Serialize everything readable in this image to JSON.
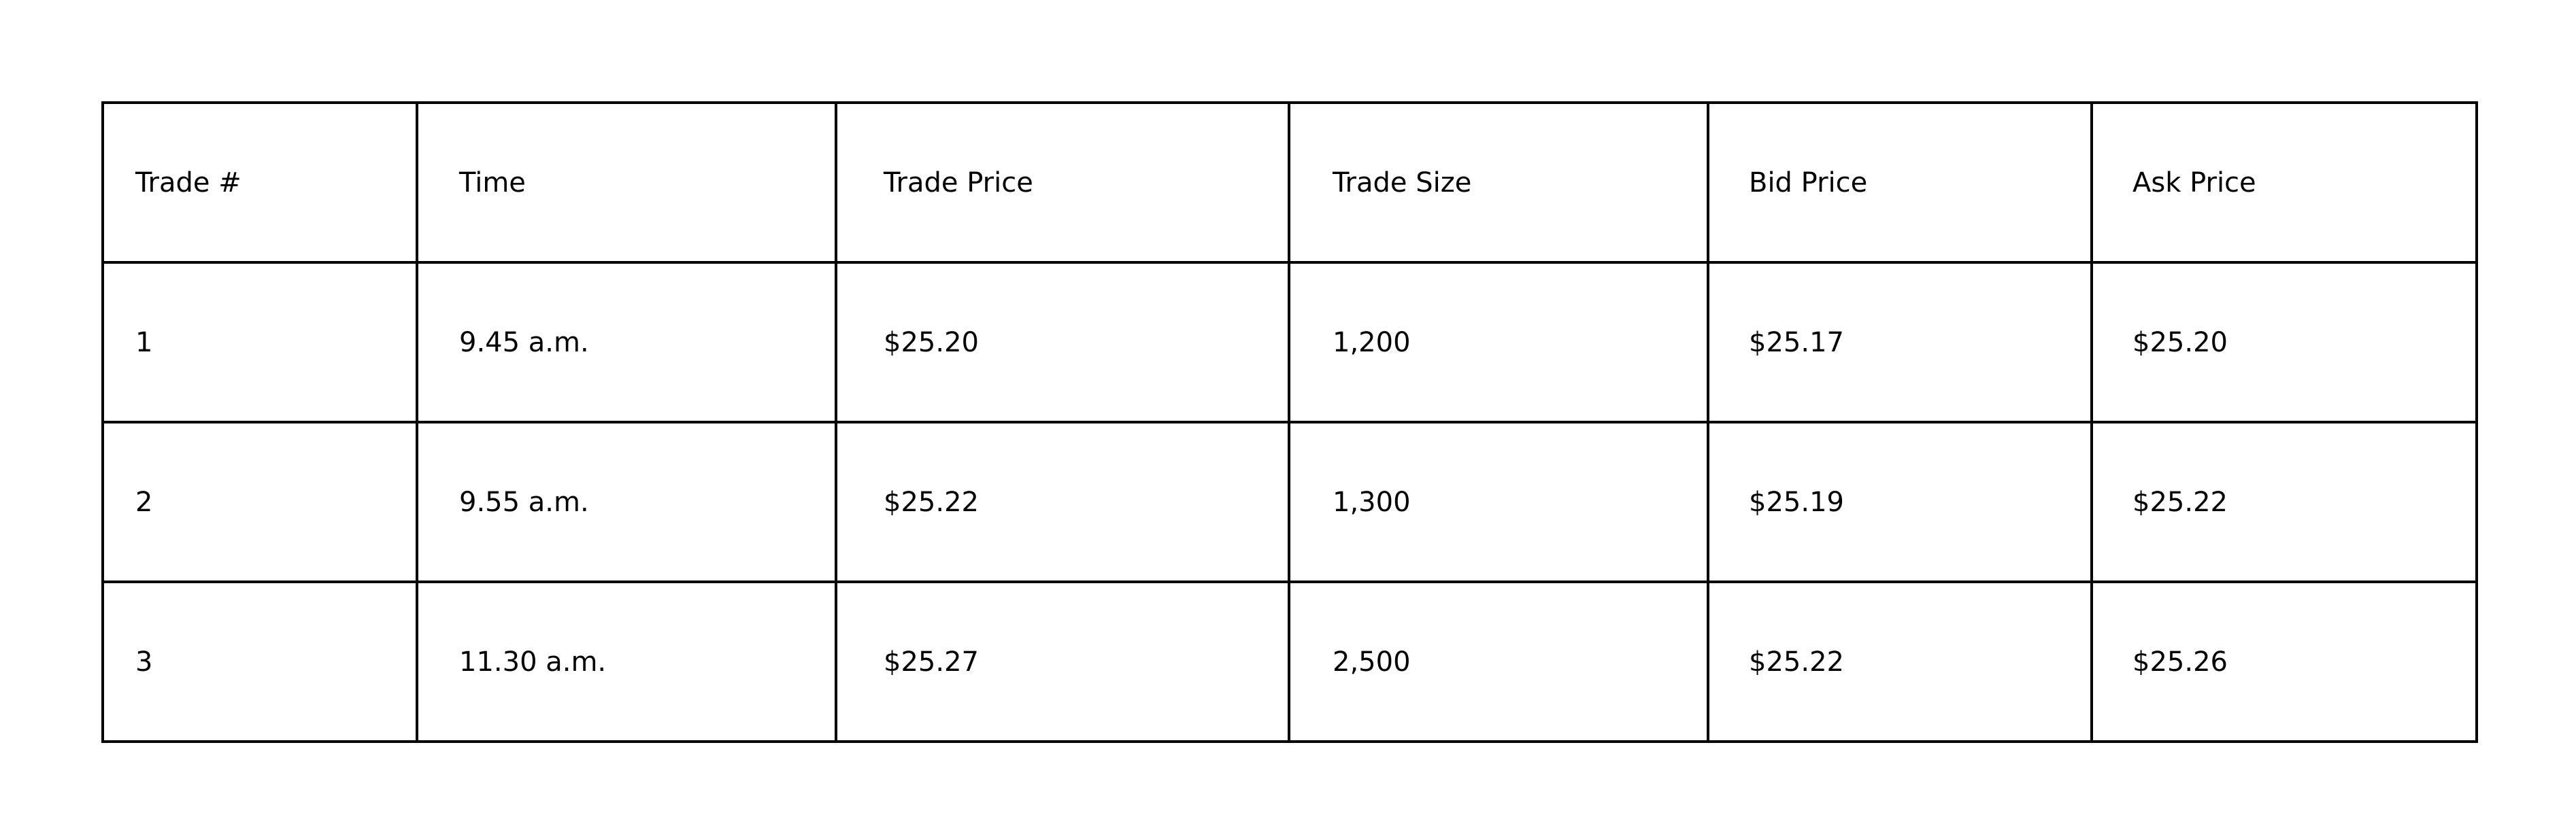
{
  "table": {
    "headers": [
      "Trade #",
      "Time",
      "Trade Price",
      "Trade Size",
      "Bid Price",
      "Ask Price"
    ],
    "rows": [
      [
        "1",
        "9.45 a.m.",
        "$25.20",
        "1,200",
        "$25.17",
        "$25.20"
      ],
      [
        "2",
        "9.55 a.m.",
        "$25.22",
        "1,300",
        "$25.19",
        "$25.22"
      ],
      [
        "3",
        "11.30 a.m.",
        "$25.27",
        "2,500",
        "$25.22",
        "$25.26"
      ]
    ]
  },
  "colors": {
    "border": "#000000",
    "text": "#000000",
    "background": "#ffffff"
  }
}
